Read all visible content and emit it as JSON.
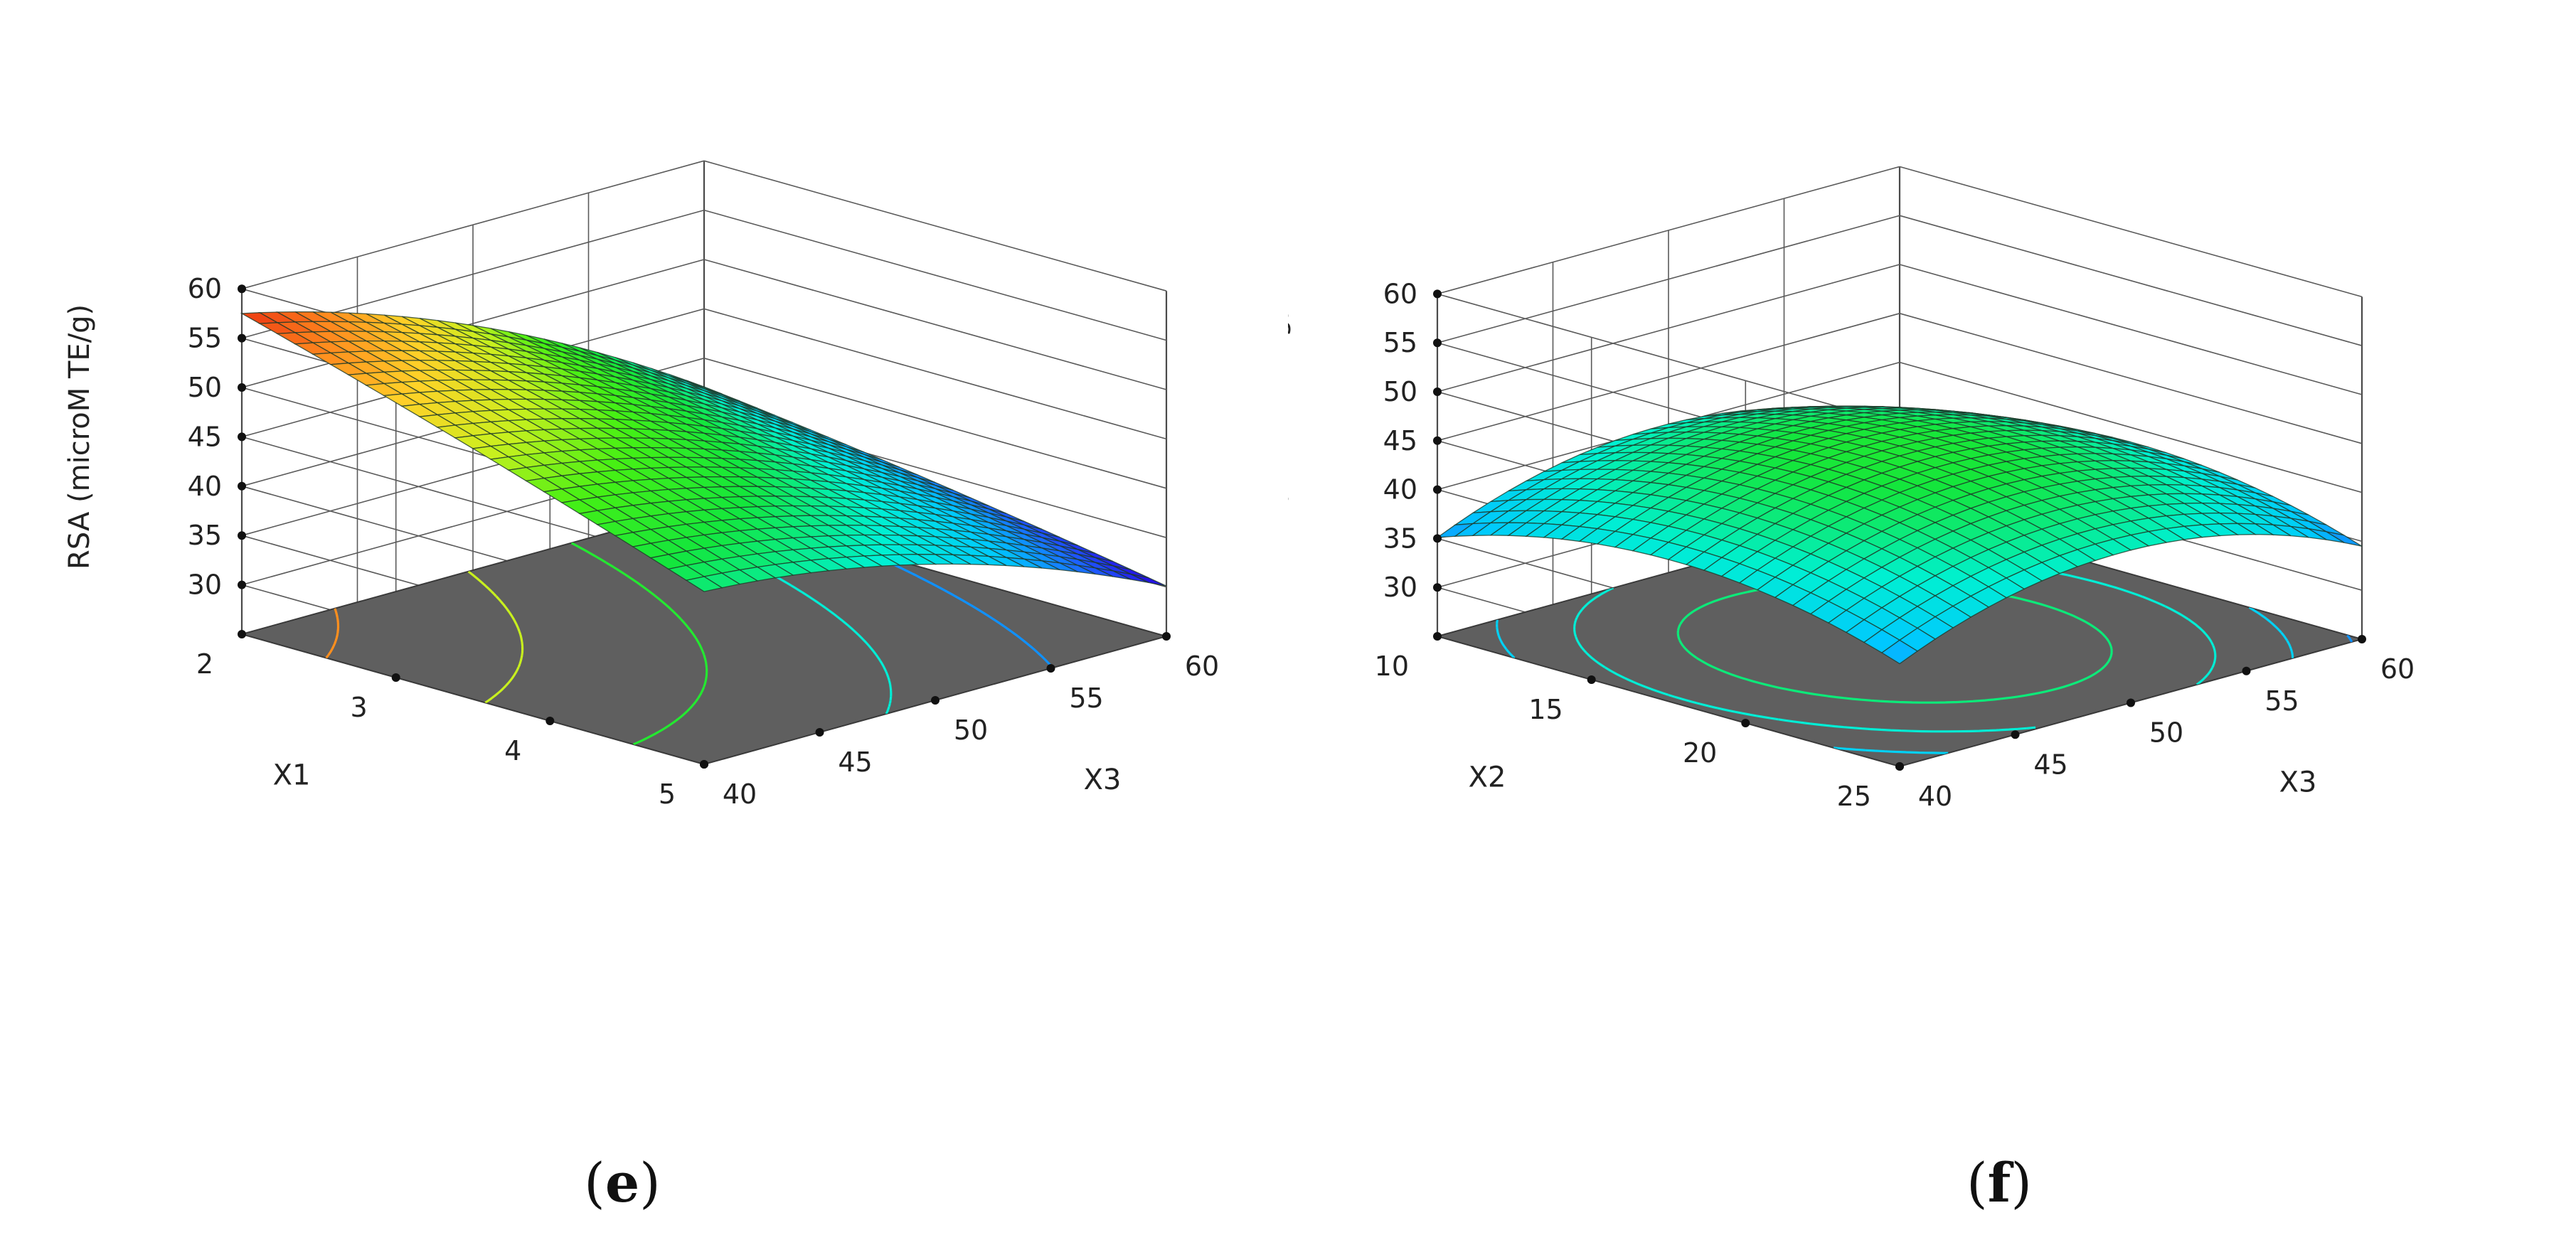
{
  "chart_data": [
    {
      "panel": "e",
      "caption": "e",
      "type": "surface3d",
      "xlabel": "X1",
      "ylabel": "X3",
      "zlabel": "RSA (microM TE/g)",
      "x_ticks": [
        "2",
        "3",
        "4",
        "5"
      ],
      "y_ticks": [
        "40",
        "45",
        "50",
        "55",
        "60"
      ],
      "z_ticks": [
        "30",
        "35",
        "40",
        "45",
        "50",
        "55",
        "60"
      ],
      "xlim": [
        2,
        5
      ],
      "ylim": [
        40,
        60
      ],
      "zlim": [
        25,
        60
      ],
      "model": {
        "form": "quadratic",
        "intercept": 44.7,
        "x_center": 3.5,
        "x_half_range": 1.5,
        "y_center": 50,
        "y_half_range": 10,
        "linear_x": -5.5,
        "linear_y": -8.2,
        "interaction_xy": 2.0,
        "quadratic_x": -0.4,
        "quadratic_y": -2.5
      },
      "contour_levels": [
        30,
        35,
        40,
        45,
        50,
        55
      ],
      "colorscale_range": [
        30,
        57
      ],
      "grid": true,
      "floor_color": "#5f5f5f"
    },
    {
      "panel": "f",
      "caption": "f",
      "type": "surface3d",
      "xlabel": "X2",
      "ylabel": "X3",
      "zlabel": "RSA (microM TE/g)",
      "x_ticks": [
        "10",
        "15",
        "20",
        "25"
      ],
      "y_ticks": [
        "40",
        "45",
        "50",
        "55",
        "60"
      ],
      "z_ticks": [
        "30",
        "35",
        "40",
        "45",
        "50",
        "55",
        "60"
      ],
      "xlim": [
        10,
        25
      ],
      "ylim": [
        40,
        60
      ],
      "zlim": [
        25,
        60
      ],
      "model": {
        "form": "quadratic",
        "intercept": 44.6,
        "x_center": 17.5,
        "x_half_range": 7.5,
        "y_center": 50,
        "y_half_range": 10,
        "linear_x": 0.2,
        "linear_y": -0.5,
        "interaction_xy": 0.0,
        "quadratic_x": -4.2,
        "quadratic_y": -5.6
      },
      "contour_levels": [
        35,
        37.5,
        40,
        42.5
      ],
      "colorscale_range": [
        30,
        57
      ],
      "grid": true,
      "floor_color": "#5f5f5f"
    }
  ]
}
